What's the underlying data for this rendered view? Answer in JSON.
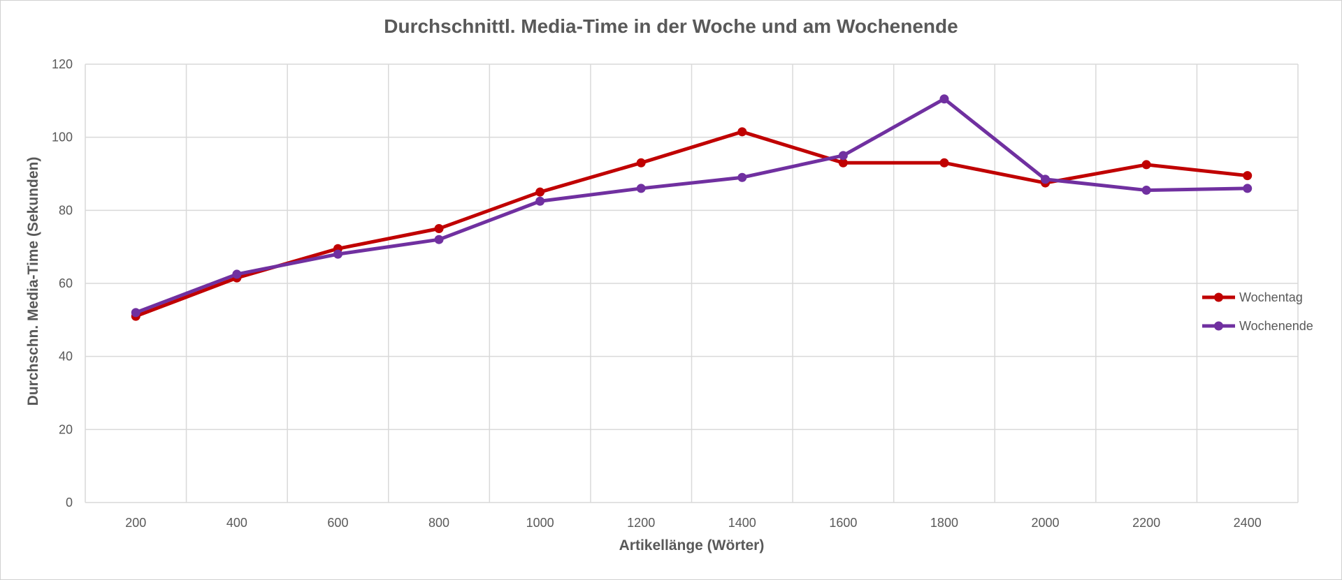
{
  "chart_data": {
    "type": "line",
    "title": "Durchschnittl. Media-Time in der Woche und am Wochenende",
    "xlabel": "Artikellänge (Wörter)",
    "ylabel": "Durchschn. Media-Time (Sekunden)",
    "categories": [
      "200",
      "400",
      "600",
      "800",
      "1000",
      "1200",
      "1400",
      "1600",
      "1800",
      "2000",
      "2200",
      "2400"
    ],
    "ylim": [
      0,
      120
    ],
    "yticks": [
      "0",
      "20",
      "40",
      "60",
      "80",
      "100",
      "120"
    ],
    "grid": true,
    "legend_position": "right",
    "series": [
      {
        "name": "Wochentag",
        "color": "#c00000",
        "values": [
          51,
          61.5,
          69.5,
          75,
          85,
          93,
          101.5,
          93,
          93,
          87.5,
          92.5,
          89.5
        ]
      },
      {
        "name": "Wochenende",
        "color": "#7030a0",
        "values": [
          52,
          62.5,
          68,
          72,
          82.5,
          86,
          89,
          95,
          110.5,
          88.5,
          85.5,
          86
        ]
      }
    ]
  }
}
